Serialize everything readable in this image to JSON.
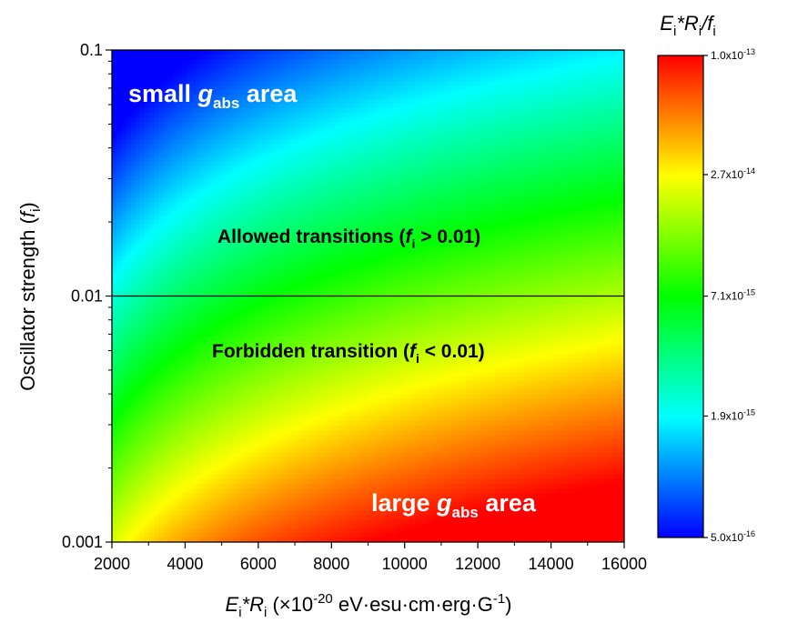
{
  "chart_data": {
    "type": "heatmap",
    "x_title": {
      "main": "E",
      "main_sub": "i",
      "mid": "*R",
      "mid_sub": "i",
      "rest": " (×10",
      "exp": "-20",
      "tail": " eV·esu·cm·erg·G",
      "tail_exp": "-1",
      "close": ")"
    },
    "y_title": {
      "main": "Oscillator strength (",
      "ital": "f",
      "sub": "i",
      "close": ")"
    },
    "colorbar_title": {
      "a": "E",
      "a_sub": "i",
      "b": "*R",
      "b_sub": "i",
      "c": "/f",
      "c_sub": "i"
    },
    "x_range": [
      2000,
      16000
    ],
    "x_ticks": [
      "2000",
      "4000",
      "6000",
      "8000",
      "10000",
      "12000",
      "14000",
      "16000"
    ],
    "x_tick_values": [
      2000,
      4000,
      6000,
      8000,
      10000,
      12000,
      14000,
      16000
    ],
    "y_scale": "log",
    "y_range": [
      0.001,
      0.1
    ],
    "y_ticks": [
      "0.001",
      "0.01",
      "0.1"
    ],
    "y_tick_values": [
      0.001,
      0.01,
      0.1
    ],
    "threshold_line_y": 0.01,
    "colorbar": {
      "scale": "log",
      "range": [
        5e-16,
        1e-13
      ],
      "ticks": [
        {
          "value": 1e-13,
          "mant": "1.0x10",
          "exp": "-13"
        },
        {
          "value": 2.7e-14,
          "mant": "2.7x10",
          "exp": "-14"
        },
        {
          "value": 7.1e-15,
          "mant": "7.1x10",
          "exp": "-15"
        },
        {
          "value": 1.9e-15,
          "mant": "1.9x10",
          "exp": "-15"
        },
        {
          "value": 5e-16,
          "mant": "5.0x10",
          "exp": "-16"
        }
      ]
    },
    "annotations": {
      "small": {
        "pre": "small ",
        "g": "g",
        "sub": "abs",
        "post": " area"
      },
      "large": {
        "pre": "large ",
        "g": "g",
        "sub": "abs",
        "post": " area"
      },
      "allowed": {
        "pre": "Allowed transitions (",
        "f": "f",
        "sub": "i",
        "post": " > 0.01)"
      },
      "forbidden": {
        "pre": "Forbidden transition (",
        "f": "f",
        "sub": "i",
        "post": " < 0.01)"
      }
    },
    "colormap": [
      "#0000ff",
      "#00ffff",
      "#00ff00",
      "#ffff00",
      "#ff0000"
    ]
  }
}
